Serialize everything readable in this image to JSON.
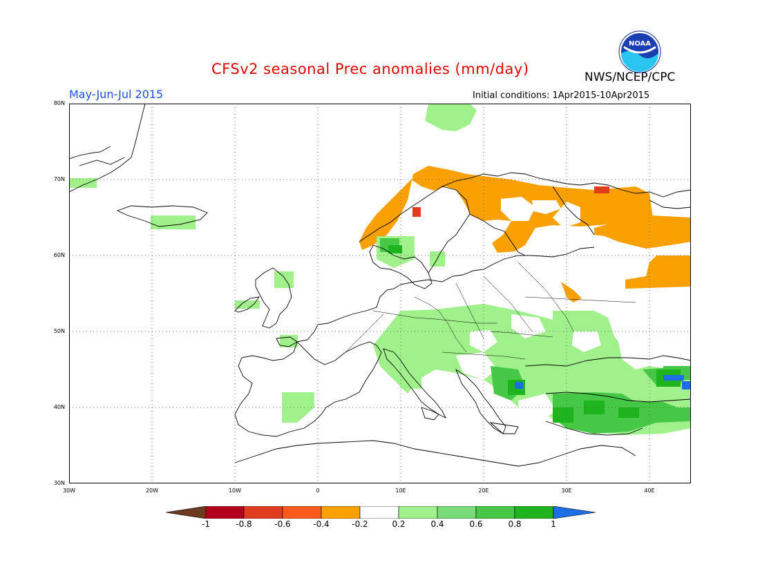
{
  "header": {
    "title": "CFSv2 seasonal Prec anomalies (mm/day)",
    "agency": "NWS/NCEP/CPC",
    "logo_text": "NOAA",
    "period": "May-Jun-Jul 2015",
    "initial_conditions": "Initial conditions: 1Apr2015-10Apr2015"
  },
  "map": {
    "lat_labels": [
      "80N",
      "70N",
      "60N",
      "50N",
      "40N",
      "30N"
    ],
    "lon_labels": [
      "30W",
      "20W",
      "10W",
      "0",
      "10E",
      "20E",
      "30E",
      "40E"
    ]
  },
  "colorbar": {
    "labels": [
      "-1",
      "-0.8",
      "-0.6",
      "-0.4",
      "-0.2",
      "0.2",
      "0.4",
      "0.6",
      "0.8",
      "1"
    ],
    "colors": {
      "lt_neg1": "#6e3a1e",
      "neg_0_8": "#b4001e",
      "neg_0_6": "#e03c1e",
      "neg_0_4": "#fa5a1e",
      "neg_0_2": "#faa000",
      "neutral": "#ffffff",
      "pos_0_2": "#a0f08c",
      "pos_0_4": "#78dc78",
      "pos_0_6": "#46c846",
      "pos_0_8": "#1eb41e",
      "gt_1": "#1e6ee6"
    }
  }
}
